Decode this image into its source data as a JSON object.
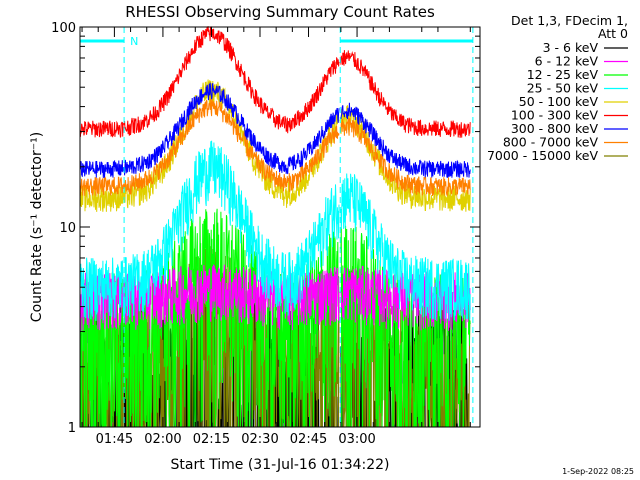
{
  "chart_data": {
    "type": "line",
    "title": "RHESSI Observing Summary Count Rates",
    "xlabel": "Start Time (31-Jul-16 01:34:22)",
    "ylabel": "Count Rate (s⁻¹ detector⁻¹)",
    "y_scale": "log",
    "ylim": [
      1,
      100
    ],
    "y_ticks": [
      {
        "value": 1,
        "label": "1"
      },
      {
        "value": 10,
        "label": "10"
      },
      {
        "value": 100,
        "label": "100"
      }
    ],
    "xlim": [
      "01:34:22",
      "03:38:00"
    ],
    "x_ticks": [
      "01:45",
      "02:00",
      "02:15",
      "02:30",
      "02:45",
      "03:00"
    ],
    "x_tick_minutes": [
      105,
      120,
      135,
      150,
      165,
      180
    ],
    "x_range_minutes": [
      94.37,
      218.0
    ],
    "header_lines": [
      "Det 1,3, FDecim 1,",
      "Att 0"
    ],
    "series": [
      {
        "name": "3 - 6 keV",
        "color": "#000000",
        "baseline": 1.9,
        "peak": 1.9,
        "noise": 0.6,
        "min": 1.0,
        "floor": true
      },
      {
        "name": "6 - 12 keV",
        "color": "#ff00ff",
        "baseline": 4.5,
        "peak": 5.0,
        "noise": 0.15,
        "min": 1.0
      },
      {
        "name": "12 - 25 keV",
        "color": "#00ff00",
        "baseline": 3.0,
        "peak": 6.5,
        "noise": 0.45,
        "min": 1.0
      },
      {
        "name": "25 - 50 keV",
        "color": "#00ffff",
        "baseline": 5.2,
        "peak": 20.0,
        "noise": 0.16,
        "min": 1.0
      },
      {
        "name": "50 - 100 keV",
        "color": "#e0d000",
        "baseline": 14.0,
        "peak": 48.0,
        "noise": 0.07
      },
      {
        "name": "100 - 300 keV",
        "color": "#ff0000",
        "baseline": 31.0,
        "peak": 93.0,
        "noise": 0.045
      },
      {
        "name": "300 - 800 keV",
        "color": "#0000ff",
        "baseline": 19.5,
        "peak": 48.0,
        "noise": 0.045
      },
      {
        "name": "800 - 7000 keV",
        "color": "#ff8000",
        "baseline": 16.0,
        "peak": 40.0,
        "noise": 0.05
      },
      {
        "name": "7000 - 15000 keV",
        "color": "#808000",
        "baseline": 1.6,
        "peak": 3.5,
        "noise": 0.6,
        "min": 1.0
      }
    ],
    "peaks_minutes": [
      [
        135,
        13
      ],
      [
        177,
        11
      ]
    ],
    "gaps_minutes": [
      [
        174.5,
        175
      ],
      [
        215,
        216
      ]
    ],
    "annotations": {
      "n_label": "N",
      "color": "#00ffff",
      "segments_minutes": [
        [
          94.4,
          108
        ],
        [
          174.8,
          215.8
        ]
      ],
      "markers_minutes": [
        108,
        174.8,
        215.8
      ]
    },
    "grid": false,
    "legend_position": "right"
  },
  "footer": {
    "timestamp": "1-Sep-2022 08:25"
  }
}
